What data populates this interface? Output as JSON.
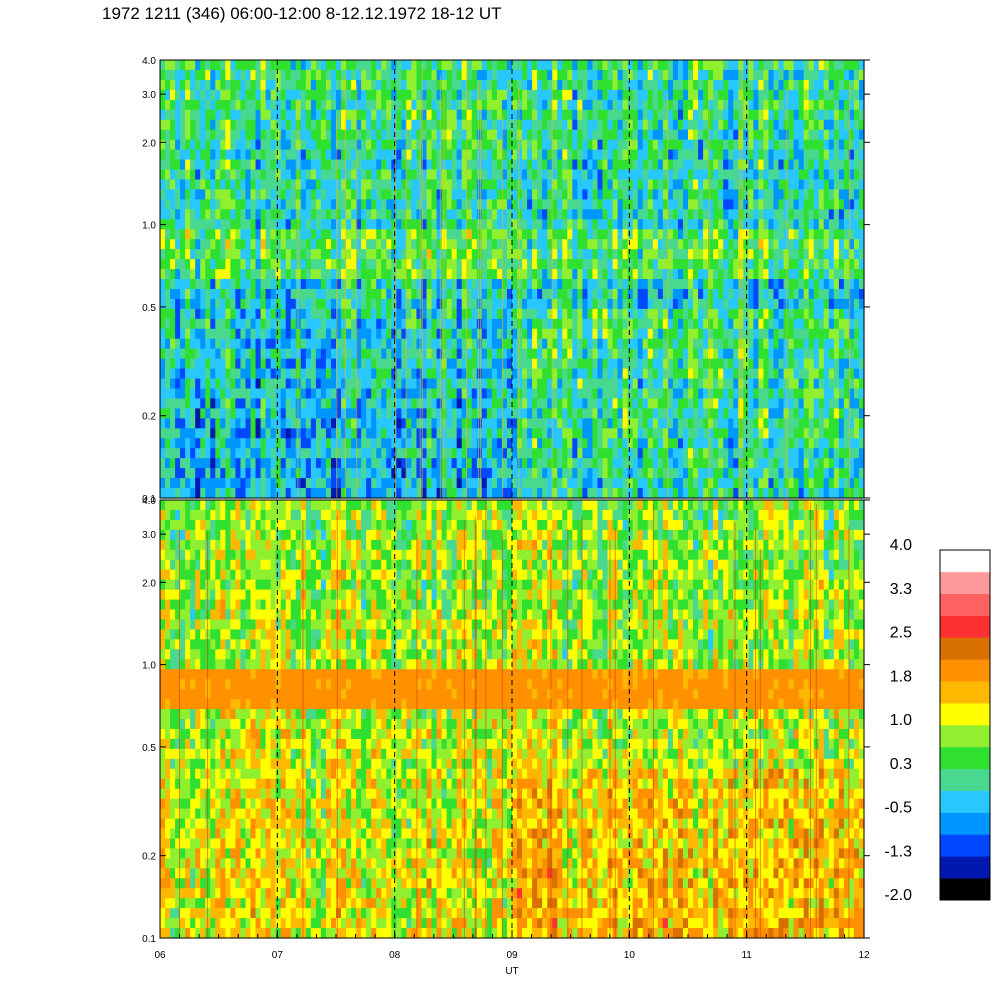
{
  "title": "1972 1211 (346) 06:00-12:00 8-12.12.1972  18-12 UT",
  "chart_data": {
    "type": "heatmap",
    "xlabel": "UT",
    "x_ticks": [
      "06",
      "07",
      "08",
      "09",
      "10",
      "11",
      "12"
    ],
    "x_range": [
      6,
      12
    ],
    "panels": [
      {
        "name": "top",
        "y_ticks": [
          "0.1",
          "0.2",
          "0.5",
          "1.0",
          "2.0",
          "3.0",
          "4.0"
        ],
        "y_range": [
          0.1,
          4.0
        ],
        "y_scale": "log",
        "typical_level": -0.3
      },
      {
        "name": "bottom",
        "y_ticks": [
          "0.1",
          "0.2",
          "0.5",
          "1.0",
          "2.0",
          "3.0",
          "4.0"
        ],
        "y_range": [
          0.1,
          4.0
        ],
        "y_scale": "log",
        "typical_level": 1.2,
        "band": {
          "from": 0.7,
          "to": 1.0,
          "level": 1.9
        }
      }
    ],
    "colorbar": {
      "labels": [
        "4.0",
        "3.3",
        "2.5",
        "1.8",
        "1.0",
        "0.3",
        "-0.5",
        "-1.3",
        "-2.0"
      ],
      "range": [
        -2.0,
        4.0
      ],
      "colors": [
        "#000000",
        "#0018b0",
        "#0048ff",
        "#0096ff",
        "#28c8ff",
        "#48d890",
        "#30e030",
        "#90f030",
        "#ffff00",
        "#ffb800",
        "#ff9000",
        "#d87000",
        "#ff3030",
        "#ff6060",
        "#ff9898",
        "#ffffff"
      ]
    },
    "vlines_at": [
      7,
      8,
      9,
      10,
      11
    ],
    "grid": false
  }
}
